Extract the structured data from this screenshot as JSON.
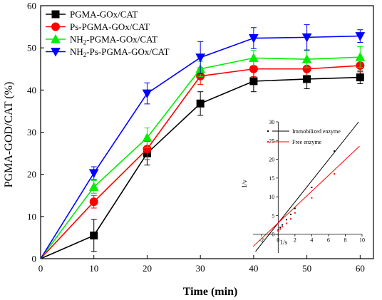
{
  "chart_data": [
    {
      "type": "line",
      "title": "",
      "xlabel": "Time (min)",
      "ylabel": "PGMA-GOD/CAT (%)",
      "xlim": [
        0,
        62.5
      ],
      "ylim": [
        0,
        60
      ],
      "x_ticks": [
        0,
        10,
        20,
        30,
        40,
        50,
        60
      ],
      "y_ticks": [
        0,
        10,
        20,
        30,
        40,
        50,
        60
      ],
      "x": [
        0,
        10,
        20,
        30,
        40,
        50,
        60
      ],
      "legend_position": "top-left",
      "series": [
        {
          "name": "PGMA-GOx/CAT",
          "marker": "square",
          "color": "#000000",
          "values": [
            0,
            5.5,
            25,
            36.8,
            42.1,
            42.6,
            43
          ],
          "errors": [
            0,
            3.8,
            2.8,
            2.8,
            2.5,
            2.3,
            1.5
          ]
        },
        {
          "name": "Ps-PGMA-GOx/CAT",
          "marker": "circle",
          "color": "#ff0000",
          "values": [
            0,
            13.5,
            26,
            43.3,
            45,
            45,
            45.8
          ],
          "errors": [
            0,
            1.5,
            2.5,
            2,
            1.8,
            1.5,
            1.5
          ]
        },
        {
          "name": "NH2-PGMA-GOx/CAT",
          "name_main": "NH",
          "name_sub": "2",
          "name_rest": "-PGMA-GOx/CAT",
          "marker": "triangle-up",
          "color": "#00ee00",
          "values": [
            0,
            17,
            28.7,
            45,
            47.6,
            47.3,
            47.8
          ],
          "errors": [
            0,
            1.5,
            2.3,
            1.8,
            1.8,
            2,
            2.5
          ]
        },
        {
          "name": "NH2-Ps-PGMA-GOx/CAT",
          "name_main": "NH",
          "name_sub": "2",
          "name_rest": "-Ps-PGMA-GOx/CAT",
          "marker": "triangle-down",
          "color": "#0000ff",
          "values": [
            0,
            20.3,
            39.2,
            47.7,
            52.3,
            52.5,
            52.8
          ],
          "errors": [
            0,
            1.5,
            2.5,
            3.8,
            2.5,
            3,
            1.5
          ]
        }
      ]
    },
    {
      "type": "scatter",
      "title": "",
      "xlabel": "1/s",
      "ylabel": "1/v",
      "xlim": [
        -3,
        10
      ],
      "ylim": [
        -5,
        30
      ],
      "x_ticks": [
        -2,
        0,
        2,
        4,
        6,
        8,
        10
      ],
      "y_ticks": [
        0,
        5,
        10,
        15,
        20,
        25,
        30
      ],
      "legend_position": "top-left",
      "series": [
        {
          "name": "Immobilized enzyme",
          "color": "#000000",
          "fit_line": {
            "x": [
              -2.7,
              9.6
            ],
            "y": [
              -4.6,
              30
            ]
          },
          "points": [
            [
              0,
              1.1
            ],
            [
              0.25,
              1.8
            ],
            [
              0.5,
              2.5
            ],
            [
              1,
              3.9
            ],
            [
              1.5,
              5.3
            ],
            [
              2,
              6.9
            ],
            [
              4,
              12.5
            ],
            [
              6.7,
              22.2
            ]
          ]
        },
        {
          "name": "Free enzyme",
          "color": "#ff0000",
          "fit_line": {
            "x": [
              -3,
              9.7
            ],
            "y": [
              -3.3,
              23.5
            ]
          },
          "points": [
            [
              0,
              0.9
            ],
            [
              0.25,
              1.4
            ],
            [
              0.5,
              2
            ],
            [
              1,
              2.9
            ],
            [
              1.5,
              4.1
            ],
            [
              2,
              5.7
            ],
            [
              4,
              9.7
            ],
            [
              6.7,
              16.1
            ]
          ]
        }
      ]
    }
  ]
}
